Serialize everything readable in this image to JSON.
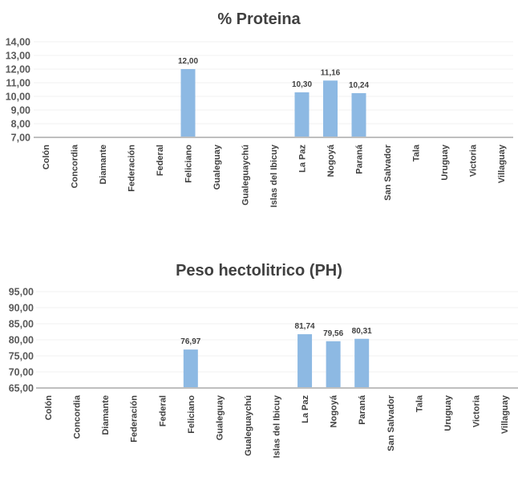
{
  "chart_data": [
    {
      "type": "bar",
      "title": "% Proteina",
      "xlabel": "",
      "ylabel": "",
      "ylim": [
        7,
        14
      ],
      "yticks": [
        "7,00",
        "8,00",
        "9,00",
        "10,00",
        "11,00",
        "12,00",
        "13,00",
        "14,00"
      ],
      "grid": true,
      "categories": [
        "Colón",
        "Concordia",
        "Diamante",
        "Federación",
        "Federal",
        "Feliciano",
        "Gualeguay",
        "Gualeguaychú",
        "Islas del Ibicuy",
        "La Paz",
        "Nogoyá",
        "Paraná",
        "San Salvador",
        "Tala",
        "Uruguay",
        "Victoria",
        "Villaguay"
      ],
      "values": [
        null,
        null,
        null,
        null,
        null,
        12.0,
        null,
        null,
        null,
        10.3,
        11.16,
        10.24,
        null,
        null,
        null,
        null,
        null
      ],
      "data_labels": [
        null,
        null,
        null,
        null,
        null,
        "12,00",
        null,
        null,
        null,
        "10,30",
        "11,16",
        "10,24",
        null,
        null,
        null,
        null,
        null
      ],
      "bar_color": "#8db9e3"
    },
    {
      "type": "bar",
      "title": "Peso hectolitrico (PH)",
      "xlabel": "",
      "ylabel": "",
      "ylim": [
        65,
        95
      ],
      "yticks": [
        "65,00",
        "70,00",
        "75,00",
        "80,00",
        "85,00",
        "90,00",
        "95,00"
      ],
      "grid": true,
      "categories": [
        "Colón",
        "Concordia",
        "Diamante",
        "Federación",
        "Federal",
        "Feliciano",
        "Gualeguay",
        "Gualeguaychú",
        "Islas del Ibicuy",
        "La Paz",
        "Nogoyá",
        "Paraná",
        "San Salvador",
        "Tala",
        "Uruguay",
        "Victoria",
        "Villaguay"
      ],
      "values": [
        null,
        null,
        null,
        null,
        null,
        76.97,
        null,
        null,
        null,
        81.74,
        79.56,
        80.31,
        null,
        null,
        null,
        null,
        null
      ],
      "data_labels": [
        null,
        null,
        null,
        null,
        null,
        "76,97",
        null,
        null,
        null,
        "81,74",
        "79,56",
        "80,31",
        null,
        null,
        null,
        null,
        null
      ],
      "bar_color": "#8db9e3"
    }
  ]
}
